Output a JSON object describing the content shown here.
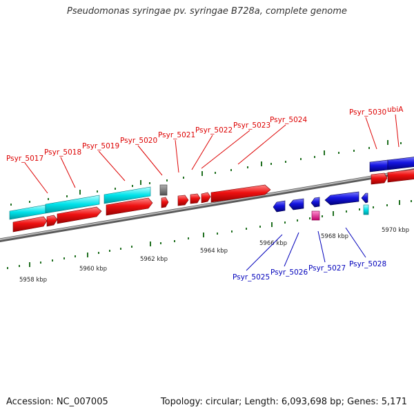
{
  "title": "Pseudomonas syringae pv. syringae B728a, complete genome",
  "footer": {
    "accession": "Accession: NC_007005",
    "summary": "Topology: circular; Length: 6,093,698 bp; Genes: 5,171"
  },
  "colors": {
    "forward_cds": "#ee1111",
    "reverse_cds": "#1111dd",
    "forward_rna": "#00e0e8",
    "reverse_rna": "#00e0e8",
    "pseudogene": "#707070",
    "pink_feature": "#ee1188",
    "backbone": "#8a8a8a",
    "ticks": "#1f6f1f",
    "forward_label": "#dd0000",
    "reverse_label": "#0000bb"
  },
  "scale_labels": {
    "kbp_5958": "5958 kbp",
    "kbp_5960": "5960 kbp",
    "kbp_5962": "5962 kbp",
    "kbp_5964": "5964 kbp",
    "kbp_5966": "5966 kbp",
    "kbp_5968": "5968 kbp",
    "kbp_5970": "5970 kbp"
  },
  "genes_forward": {
    "psyr_5017": "Psyr_5017",
    "psyr_5018": "Psyr_5018",
    "psyr_5019": "Psyr_5019",
    "psyr_5020": "Psyr_5020",
    "psyr_5021": "Psyr_5021",
    "psyr_5022": "Psyr_5022",
    "psyr_5023": "Psyr_5023",
    "psyr_5024": "Psyr_5024",
    "psyr_5030": "Psyr_5030",
    "ubia": "ubiA"
  },
  "genes_reverse": {
    "psyr_5025": "Psyr_5025",
    "psyr_5026": "Psyr_5026",
    "psyr_5027": "Psyr_5027",
    "psyr_5028": "Psyr_5028"
  }
}
